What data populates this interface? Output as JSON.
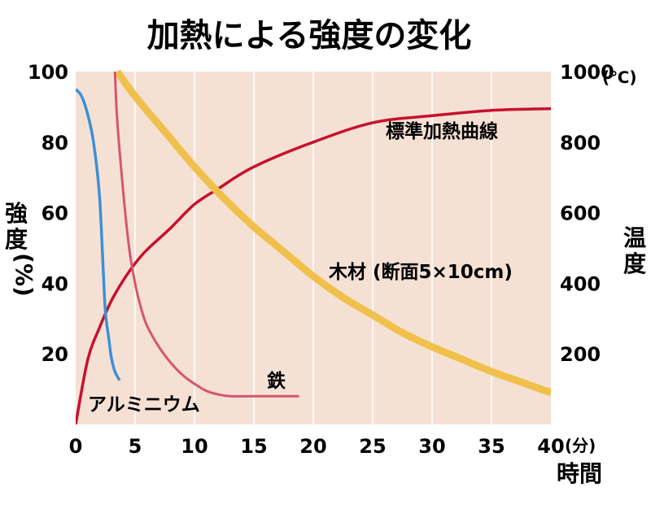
{
  "chart_data": {
    "type": "line",
    "title": "加熱による強度の変化",
    "xlabel": "時間",
    "x_unit": "(分)",
    "ylabel_left": [
      "強",
      "度",
      "(%)"
    ],
    "ylabel_right": [
      "温",
      "度"
    ],
    "y_right_unit": "(℃)",
    "xlim": [
      0,
      40
    ],
    "ylim_left": [
      0,
      100
    ],
    "ylim_right": [
      0,
      1000
    ],
    "x_ticks": [
      "0",
      "5",
      "10",
      "15",
      "20",
      "25",
      "30",
      "35",
      "40"
    ],
    "y_left_ticks": [
      "20",
      "40",
      "60",
      "80",
      "100"
    ],
    "y_right_ticks": [
      "200",
      "400",
      "600",
      "800",
      "1000"
    ],
    "grid": "vertical",
    "colors": {
      "background": "#f5e1d4",
      "grid": "#ffffff"
    },
    "series": [
      {
        "name": "標準加熱曲線",
        "axis": "right",
        "color": "#c8102e",
        "x": [
          0,
          1,
          2,
          3,
          4,
          5,
          6,
          8,
          10,
          12,
          15,
          20,
          25,
          30,
          35,
          40
        ],
        "y": [
          0,
          181,
          274,
          350,
          408,
          456,
          495,
          557,
          624,
          668,
          730,
          800,
          855,
          875,
          890,
          895
        ]
      },
      {
        "name": "木材 (断面5×10cm)",
        "axis": "left",
        "color": "#f0c04c",
        "x": [
          3.5,
          5,
          7.5,
          10,
          12.5,
          15,
          17.5,
          20,
          22.5,
          25,
          27.5,
          30,
          32.5,
          35,
          37.5,
          40
        ],
        "y": [
          100,
          93,
          83,
          73,
          64,
          56,
          49,
          42,
          36,
          31,
          26,
          22,
          18.5,
          15,
          12,
          9
        ]
      },
      {
        "name": "鉄",
        "axis": "left",
        "color": "#d4566f",
        "x": [
          3.3,
          3.5,
          4,
          4.5,
          5,
          5.5,
          6,
          7,
          8,
          9,
          10,
          11,
          12,
          13,
          15,
          17,
          18.8
        ],
        "y": [
          100,
          86,
          66,
          50,
          40,
          33,
          28,
          22,
          17.5,
          14,
          11.5,
          9.5,
          8.5,
          8,
          8,
          8,
          8
        ]
      },
      {
        "name": "アルミニウム",
        "axis": "left",
        "color": "#3d8fd6",
        "x": [
          0,
          0.5,
          1,
          1.5,
          2,
          2.3,
          2.5,
          2.8,
          3,
          3.3,
          3.7
        ],
        "y": [
          95,
          93,
          88,
          80,
          65,
          45,
          32,
          24,
          19,
          15,
          12.5
        ]
      }
    ]
  }
}
